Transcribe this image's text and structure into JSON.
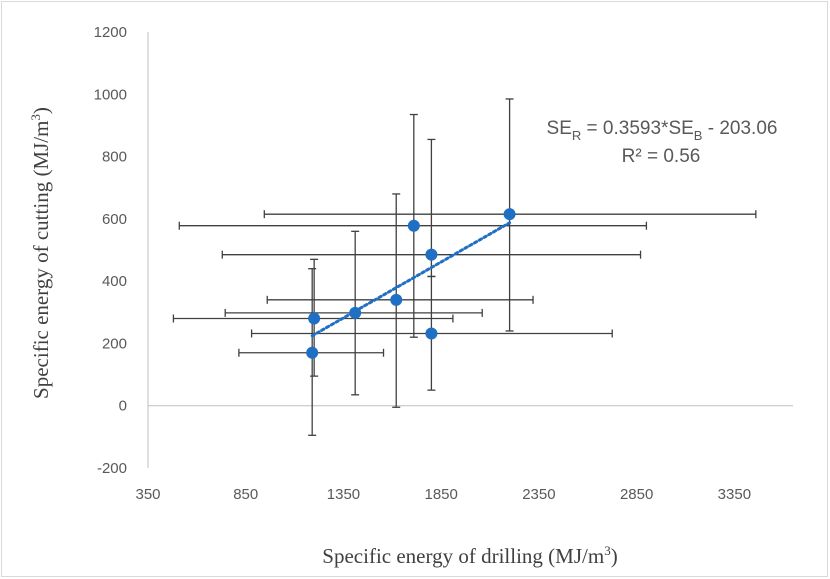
{
  "chart_data": {
    "type": "scatter",
    "xlabel": "Specific energy of drilling (MJ/m",
    "xlabel_sup": "3",
    "xlabel_end": ")",
    "ylabel": "Specific energy of cutting (MJ/m",
    "ylabel_sup": "3",
    "ylabel_end": ")",
    "xlim": [
      350,
      3650
    ],
    "ylim": [
      -200,
      1200
    ],
    "xticks": [
      350,
      850,
      1350,
      1850,
      2350,
      2850,
      3350
    ],
    "yticks": [
      -200,
      0,
      200,
      400,
      600,
      800,
      1000,
      1200
    ],
    "grid": false,
    "marker_color": "#1F6FC5",
    "trend_color": "#1F6FC5",
    "errorbar_color": "#404040",
    "points": [
      {
        "x": 1190,
        "y": 170,
        "x_lo": 815,
        "x_hi": 1555,
        "y_lo": -95,
        "y_hi": 440
      },
      {
        "x": 1200,
        "y": 280,
        "x_lo": 480,
        "x_hi": 1910,
        "y_lo": 95,
        "y_hi": 470
      },
      {
        "x": 1410,
        "y": 298,
        "x_lo": 745,
        "x_hi": 2060,
        "y_lo": 35,
        "y_hi": 560
      },
      {
        "x": 1620,
        "y": 340,
        "x_lo": 960,
        "x_hi": 2320,
        "y_lo": -5,
        "y_hi": 680
      },
      {
        "x": 1710,
        "y": 578,
        "x_lo": 510,
        "x_hi": 2900,
        "y_lo": 220,
        "y_hi": 935
      },
      {
        "x": 1800,
        "y": 485,
        "x_lo": 730,
        "x_hi": 2870,
        "y_lo": 415,
        "y_hi": 855
      },
      {
        "x": 1800,
        "y": 232,
        "x_lo": 880,
        "x_hi": 2725,
        "y_lo": 50,
        "y_hi": 415
      },
      {
        "x": 2200,
        "y": 615,
        "x_lo": 945,
        "x_hi": 3460,
        "y_lo": 240,
        "y_hi": 985
      }
    ],
    "trendline": {
      "x_start": 1190,
      "x_end": 2200,
      "slope": 0.3593,
      "intercept": -203.06,
      "style": "dotted"
    },
    "annotation": {
      "eq_a": "SE",
      "eq_a_sub": "R",
      "eq_b": " = 0.3593*SE",
      "eq_b_sub": "B",
      "eq_c": " - 203.06",
      "r2": "R² = 0.56"
    }
  }
}
